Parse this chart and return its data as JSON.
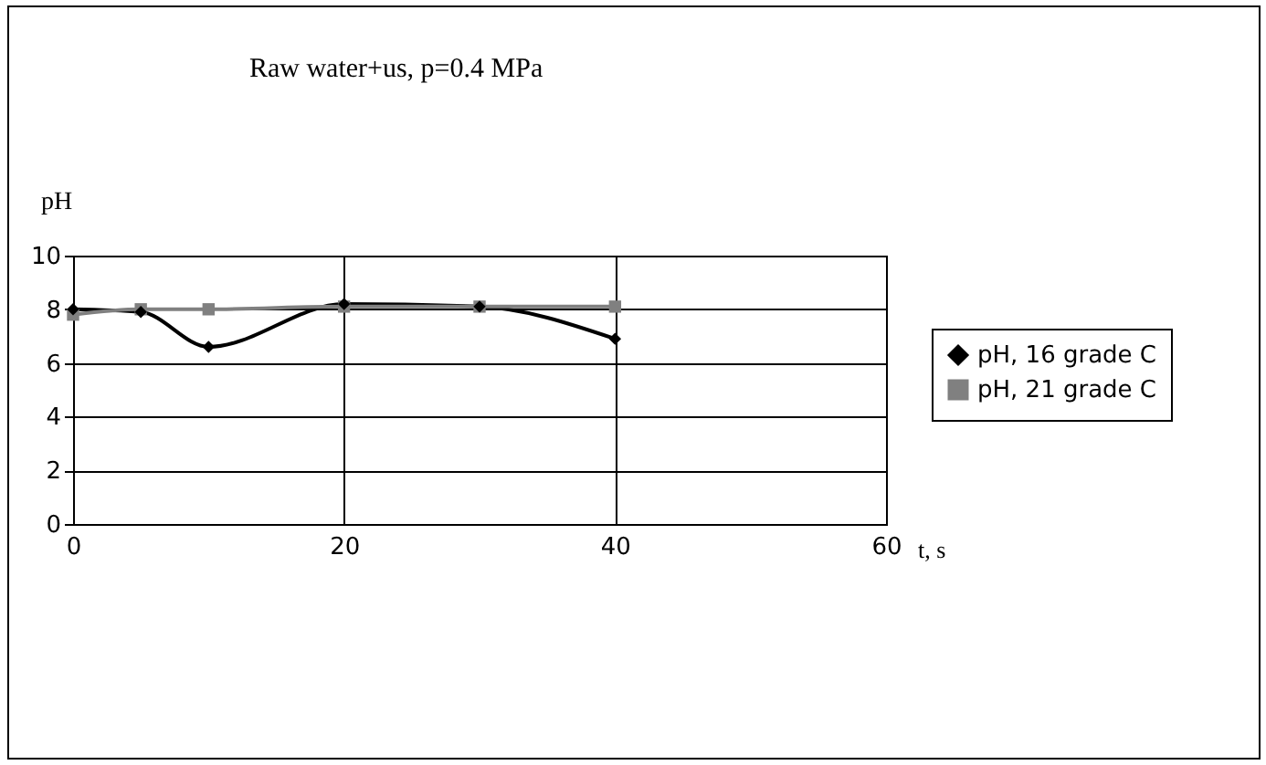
{
  "chart_data": {
    "type": "line",
    "title": "Raw water+us, p=0.4 MPa",
    "ylabel": "pH",
    "xlabel": "t, s",
    "x": [
      0,
      5,
      10,
      20,
      30,
      40
    ],
    "series": [
      {
        "name": "pH, 16 grade C",
        "color": "#000000",
        "marker": "diamond",
        "values": [
          8,
          7.9,
          6.6,
          8.2,
          8.1,
          6.9
        ]
      },
      {
        "name": "pH, 21 grade C",
        "color": "#808080",
        "marker": "square",
        "values": [
          7.8,
          8,
          8,
          8.1,
          8.1,
          8.1
        ]
      }
    ],
    "xlim": [
      0,
      60
    ],
    "xticks": [
      0,
      20,
      40,
      60
    ],
    "ylim": [
      0,
      10
    ],
    "yticks": [
      0,
      2,
      4,
      6,
      8,
      10
    ],
    "grid": true,
    "legend": "right",
    "line_style": "solid"
  }
}
